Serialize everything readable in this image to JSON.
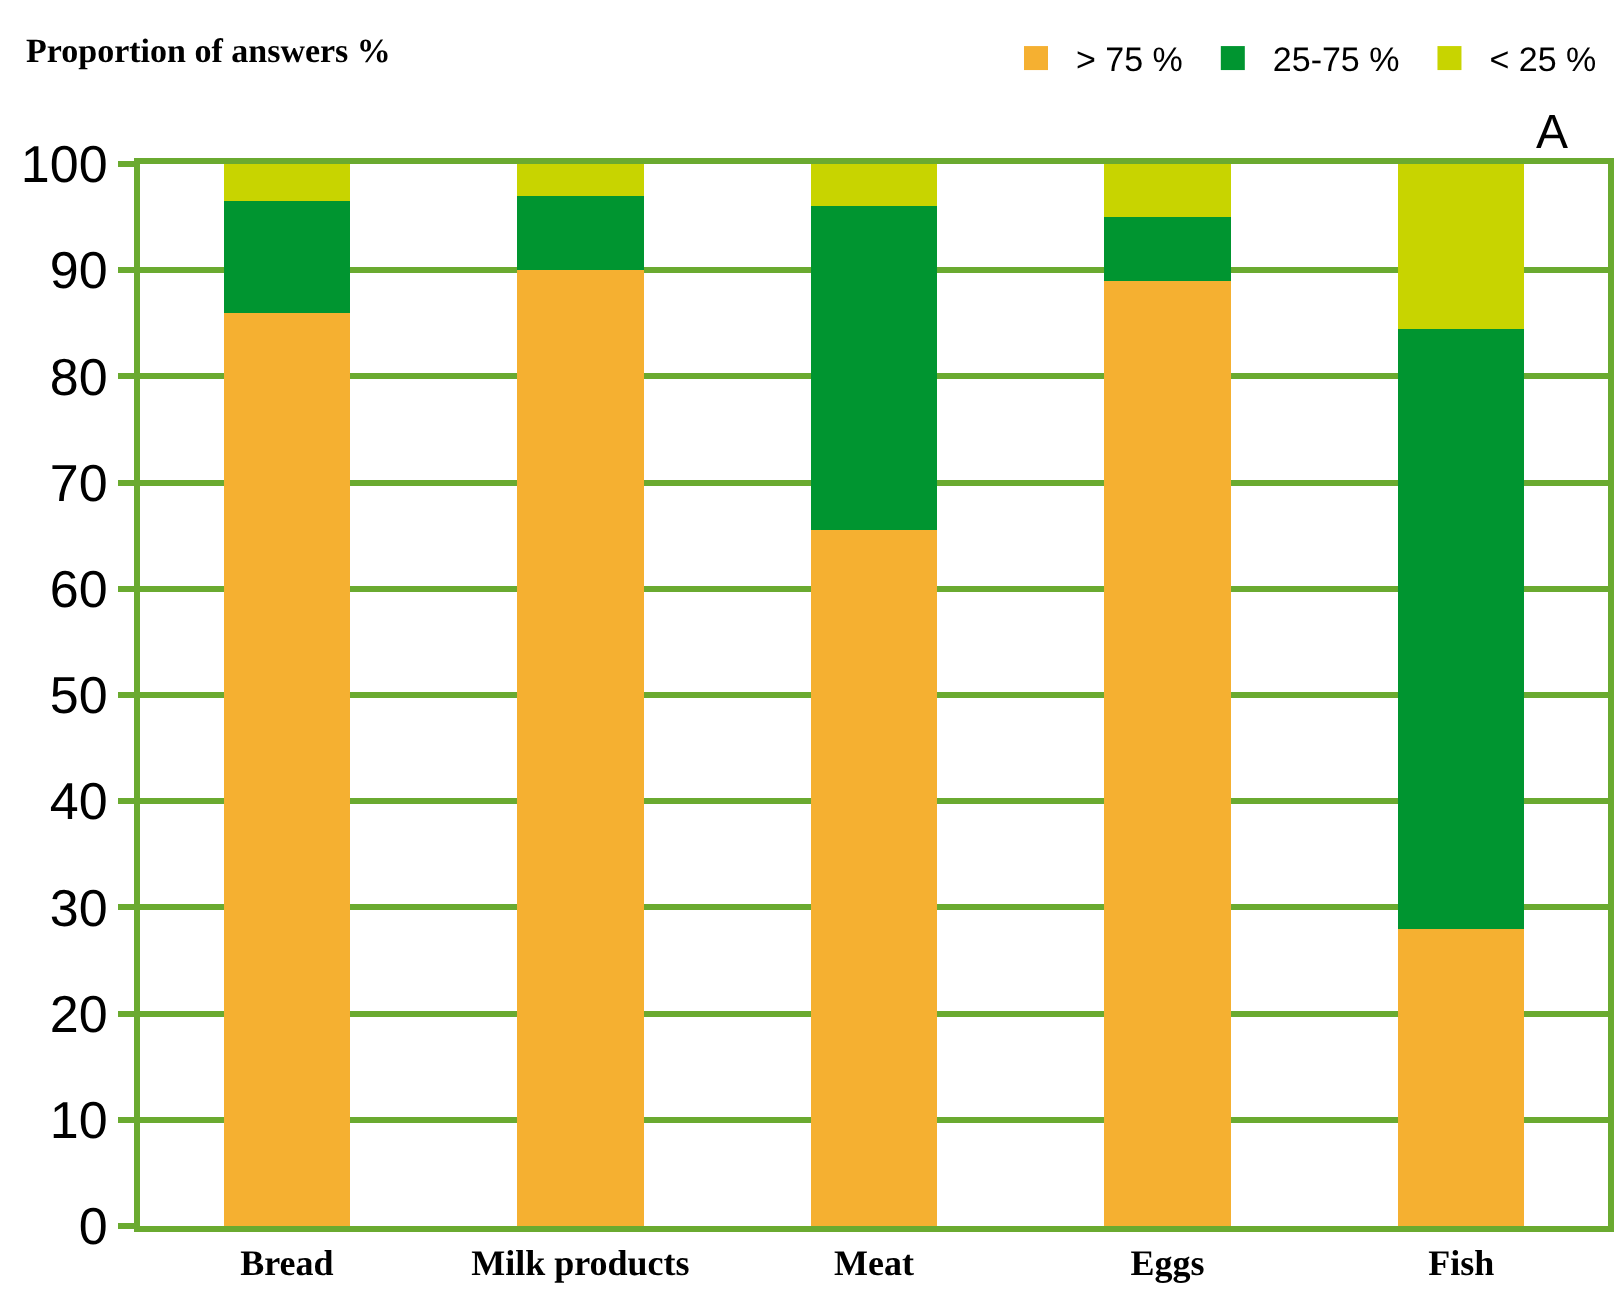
{
  "chart_data": {
    "type": "bar",
    "stacked": true,
    "ylabel": "Proportion of answers %",
    "annotations": [
      "A"
    ],
    "categories": [
      "Bread",
      "Milk products",
      "Meat",
      "Eggs",
      "Fish"
    ],
    "series": [
      {
        "name": "> 75 %",
        "color": "#f5b031",
        "values": [
          86,
          90,
          65.5,
          89,
          28
        ]
      },
      {
        "name": "25-75 %",
        "color": "#009530",
        "values": [
          10.5,
          7,
          30.5,
          6,
          56.5
        ]
      },
      {
        "name": "< 25 %",
        "color": "#c8d400",
        "values": [
          3.5,
          3,
          4,
          5,
          15.5
        ]
      }
    ],
    "ylim": [
      0,
      100
    ],
    "yticks": [
      0,
      10,
      20,
      30,
      40,
      50,
      60,
      70,
      80,
      90,
      100
    ],
    "grid": "y",
    "legend": "top right"
  }
}
